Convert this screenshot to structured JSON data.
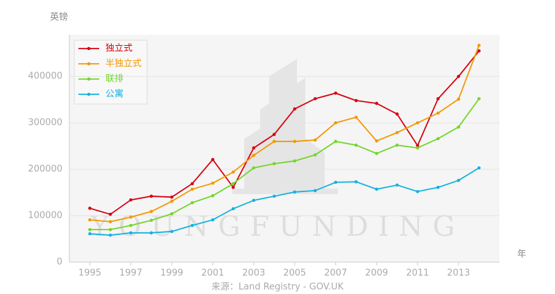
{
  "chart_data": {
    "type": "line",
    "y_label": "英镑",
    "x_label": "年",
    "source": "来源：Land Registry - GOV.UK",
    "watermark": "YOUNGFUNDING",
    "x": [
      1995,
      1996,
      1997,
      1998,
      1999,
      2000,
      2001,
      2002,
      2003,
      2004,
      2005,
      2006,
      2007,
      2008,
      2009,
      2010,
      2011,
      2012,
      2013,
      2014
    ],
    "xlim": [
      1994,
      2015
    ],
    "xticks": [
      1995,
      1997,
      1999,
      2001,
      2003,
      2005,
      2007,
      2009,
      2011,
      2013
    ],
    "ylim": [
      0,
      490000
    ],
    "yticks": [
      0,
      100000,
      200000,
      300000,
      400000
    ],
    "grid": true,
    "legend": "top-left",
    "series": [
      {
        "name": "独立式",
        "color": "#d7000f",
        "values": [
          116000,
          103000,
          134000,
          142000,
          140000,
          169000,
          221000,
          161000,
          246000,
          275000,
          330000,
          352000,
          364000,
          348000,
          342000,
          319000,
          251000,
          352000,
          400000,
          455000
        ]
      },
      {
        "name": "半独立式",
        "color": "#f39800",
        "values": [
          91000,
          87000,
          97000,
          109000,
          131000,
          157000,
          170000,
          194000,
          230000,
          260000,
          260000,
          263000,
          300000,
          312000,
          261000,
          279000,
          300000,
          321000,
          351000,
          467000
        ]
      },
      {
        "name": "联排",
        "color": "#72d62a",
        "values": [
          70000,
          70000,
          79000,
          90000,
          104000,
          128000,
          143000,
          169000,
          203000,
          212000,
          218000,
          231000,
          260000,
          252000,
          234000,
          252000,
          246000,
          266000,
          291000,
          352000
        ]
      },
      {
        "name": "公寓",
        "color": "#12b2e0",
        "values": [
          61000,
          58000,
          63000,
          63000,
          66000,
          79000,
          91000,
          115000,
          133000,
          142000,
          151000,
          154000,
          172000,
          173000,
          157000,
          166000,
          152000,
          161000,
          176000,
          203000
        ]
      }
    ]
  }
}
